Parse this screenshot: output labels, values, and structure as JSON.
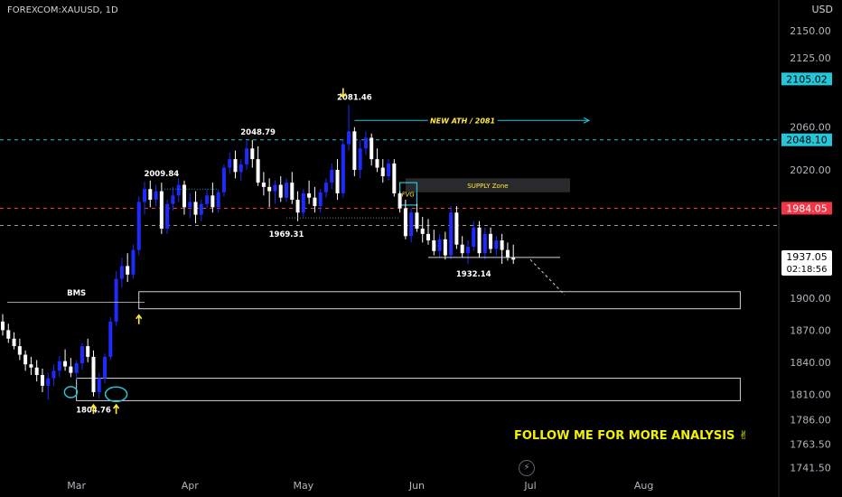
{
  "header": {
    "symbol": "FOREXCOM:XAUUSD, 1D",
    "currency": "USD"
  },
  "colors": {
    "bull": "#1e2bff",
    "bear": "#ffffff",
    "teal": "#26c6da",
    "red": "#f23645",
    "yellow": "#ffeb3b",
    "follow": "#f2f200"
  },
  "chart_data": {
    "type": "candlestick",
    "title": "FOREXCOM:XAUUSD, 1D",
    "ylim": [
      1735,
      2162
    ],
    "y_ticks": [
      "2150.00",
      "2125.00",
      "2060.00",
      "2020.00",
      "1900.00",
      "1870.00",
      "1840.00",
      "1810.00",
      "1786.00",
      "1763.50",
      "1741.50"
    ],
    "y_tick_values": [
      2150,
      2125,
      2060,
      2020,
      1900,
      1870,
      1840,
      1810,
      1786,
      1763.5,
      1741.5
    ],
    "x_ticks": [
      "Mar",
      "Apr",
      "May",
      "Jun",
      "Jul",
      "Aug"
    ],
    "x_tick_index": [
      13,
      33,
      53,
      73,
      93,
      113
    ],
    "candles": [
      {
        "o": 1878,
        "h": 1885,
        "l": 1865,
        "c": 1870
      },
      {
        "o": 1870,
        "h": 1876,
        "l": 1858,
        "c": 1862
      },
      {
        "o": 1862,
        "h": 1868,
        "l": 1852,
        "c": 1855
      },
      {
        "o": 1855,
        "h": 1862,
        "l": 1842,
        "c": 1847
      },
      {
        "o": 1847,
        "h": 1851,
        "l": 1832,
        "c": 1838
      },
      {
        "o": 1838,
        "h": 1845,
        "l": 1828,
        "c": 1835
      },
      {
        "o": 1835,
        "h": 1842,
        "l": 1822,
        "c": 1828
      },
      {
        "o": 1828,
        "h": 1834,
        "l": 1812,
        "c": 1818
      },
      {
        "o": 1818,
        "h": 1830,
        "l": 1805,
        "c": 1825
      },
      {
        "o": 1825,
        "h": 1838,
        "l": 1818,
        "c": 1832
      },
      {
        "o": 1832,
        "h": 1846,
        "l": 1826,
        "c": 1841
      },
      {
        "o": 1841,
        "h": 1852,
        "l": 1832,
        "c": 1836
      },
      {
        "o": 1836,
        "h": 1844,
        "l": 1826,
        "c": 1830
      },
      {
        "o": 1830,
        "h": 1842,
        "l": 1824,
        "c": 1839
      },
      {
        "o": 1839,
        "h": 1858,
        "l": 1833,
        "c": 1855
      },
      {
        "o": 1855,
        "h": 1862,
        "l": 1840,
        "c": 1845
      },
      {
        "o": 1845,
        "h": 1851,
        "l": 1808,
        "c": 1812
      },
      {
        "o": 1812,
        "h": 1830,
        "l": 1806,
        "c": 1825
      },
      {
        "o": 1825,
        "h": 1848,
        "l": 1820,
        "c": 1845
      },
      {
        "o": 1845,
        "h": 1882,
        "l": 1842,
        "c": 1878
      },
      {
        "o": 1878,
        "h": 1925,
        "l": 1874,
        "c": 1918
      },
      {
        "o": 1918,
        "h": 1938,
        "l": 1910,
        "c": 1930
      },
      {
        "o": 1930,
        "h": 1942,
        "l": 1915,
        "c": 1922
      },
      {
        "o": 1922,
        "h": 1950,
        "l": 1918,
        "c": 1945
      },
      {
        "o": 1945,
        "h": 1995,
        "l": 1940,
        "c": 1990
      },
      {
        "o": 1990,
        "h": 2009,
        "l": 1978,
        "c": 2002
      },
      {
        "o": 2002,
        "h": 2010,
        "l": 1985,
        "c": 1992
      },
      {
        "o": 1992,
        "h": 2006,
        "l": 1986,
        "c": 2000
      },
      {
        "o": 2000,
        "h": 2008,
        "l": 1960,
        "c": 1965
      },
      {
        "o": 1965,
        "h": 1992,
        "l": 1960,
        "c": 1988
      },
      {
        "o": 1988,
        "h": 2004,
        "l": 1982,
        "c": 1996
      },
      {
        "o": 1996,
        "h": 2012,
        "l": 1990,
        "c": 2006
      },
      {
        "o": 2006,
        "h": 2010,
        "l": 1978,
        "c": 1985
      },
      {
        "o": 1985,
        "h": 1998,
        "l": 1975,
        "c": 1990
      },
      {
        "o": 1990,
        "h": 2000,
        "l": 1970,
        "c": 1978
      },
      {
        "o": 1978,
        "h": 1992,
        "l": 1972,
        "c": 1988
      },
      {
        "o": 1988,
        "h": 2002,
        "l": 1984,
        "c": 1996
      },
      {
        "o": 1996,
        "h": 2008,
        "l": 1980,
        "c": 1985
      },
      {
        "o": 1985,
        "h": 2002,
        "l": 1980,
        "c": 1999
      },
      {
        "o": 1999,
        "h": 2025,
        "l": 1995,
        "c": 2022
      },
      {
        "o": 2022,
        "h": 2036,
        "l": 2016,
        "c": 2030
      },
      {
        "o": 2030,
        "h": 2038,
        "l": 2012,
        "c": 2018
      },
      {
        "o": 2018,
        "h": 2030,
        "l": 2010,
        "c": 2025
      },
      {
        "o": 2025,
        "h": 2048,
        "l": 2020,
        "c": 2040
      },
      {
        "o": 2040,
        "h": 2048,
        "l": 2022,
        "c": 2030
      },
      {
        "o": 2030,
        "h": 2042,
        "l": 2005,
        "c": 2008
      },
      {
        "o": 2008,
        "h": 2018,
        "l": 1996,
        "c": 2004
      },
      {
        "o": 2004,
        "h": 2012,
        "l": 1985,
        "c": 2000
      },
      {
        "o": 2000,
        "h": 2010,
        "l": 1988,
        "c": 2006
      },
      {
        "o": 2006,
        "h": 2014,
        "l": 1990,
        "c": 1994
      },
      {
        "o": 1994,
        "h": 2012,
        "l": 1990,
        "c": 2008
      },
      {
        "o": 2008,
        "h": 2018,
        "l": 1988,
        "c": 1992
      },
      {
        "o": 1992,
        "h": 2000,
        "l": 1972,
        "c": 1980
      },
      {
        "o": 1980,
        "h": 2002,
        "l": 1975,
        "c": 1998
      },
      {
        "o": 1998,
        "h": 2010,
        "l": 1988,
        "c": 1994
      },
      {
        "o": 1994,
        "h": 2004,
        "l": 1980,
        "c": 1986
      },
      {
        "o": 1986,
        "h": 2002,
        "l": 1980,
        "c": 1999
      },
      {
        "o": 1999,
        "h": 2012,
        "l": 1994,
        "c": 2008
      },
      {
        "o": 2008,
        "h": 2026,
        "l": 2002,
        "c": 2020
      },
      {
        "o": 2020,
        "h": 2030,
        "l": 1992,
        "c": 1998
      },
      {
        "o": 1998,
        "h": 2048,
        "l": 1994,
        "c": 2044
      },
      {
        "o": 2044,
        "h": 2081,
        "l": 2038,
        "c": 2056
      },
      {
        "o": 2056,
        "h": 2060,
        "l": 2014,
        "c": 2020
      },
      {
        "o": 2020,
        "h": 2048,
        "l": 2012,
        "c": 2040
      },
      {
        "o": 2040,
        "h": 2056,
        "l": 2034,
        "c": 2050
      },
      {
        "o": 2050,
        "h": 2054,
        "l": 2024,
        "c": 2030
      },
      {
        "o": 2030,
        "h": 2040,
        "l": 2018,
        "c": 2022
      },
      {
        "o": 2022,
        "h": 2030,
        "l": 2008,
        "c": 2014
      },
      {
        "o": 2014,
        "h": 2030,
        "l": 2010,
        "c": 2026
      },
      {
        "o": 2026,
        "h": 2030,
        "l": 1995,
        "c": 1998
      },
      {
        "o": 1998,
        "h": 2000,
        "l": 1980,
        "c": 1984
      },
      {
        "o": 1984,
        "h": 1992,
        "l": 1955,
        "c": 1958
      },
      {
        "o": 1958,
        "h": 1984,
        "l": 1952,
        "c": 1980
      },
      {
        "o": 1980,
        "h": 1988,
        "l": 1962,
        "c": 1965
      },
      {
        "o": 1965,
        "h": 1976,
        "l": 1952,
        "c": 1960
      },
      {
        "o": 1960,
        "h": 1974,
        "l": 1950,
        "c": 1954
      },
      {
        "o": 1954,
        "h": 1964,
        "l": 1940,
        "c": 1944
      },
      {
        "o": 1944,
        "h": 1960,
        "l": 1938,
        "c": 1955
      },
      {
        "o": 1955,
        "h": 1962,
        "l": 1936,
        "c": 1940
      },
      {
        "o": 1940,
        "h": 1986,
        "l": 1936,
        "c": 1980
      },
      {
        "o": 1980,
        "h": 1986,
        "l": 1946,
        "c": 1950
      },
      {
        "o": 1950,
        "h": 1958,
        "l": 1938,
        "c": 1942
      },
      {
        "o": 1942,
        "h": 1954,
        "l": 1932,
        "c": 1948
      },
      {
        "o": 1948,
        "h": 1972,
        "l": 1944,
        "c": 1966
      },
      {
        "o": 1966,
        "h": 1972,
        "l": 1938,
        "c": 1942
      },
      {
        "o": 1942,
        "h": 1966,
        "l": 1936,
        "c": 1960
      },
      {
        "o": 1960,
        "h": 1966,
        "l": 1942,
        "c": 1946
      },
      {
        "o": 1946,
        "h": 1958,
        "l": 1940,
        "c": 1954
      },
      {
        "o": 1954,
        "h": 1960,
        "l": 1932,
        "c": 1945
      },
      {
        "o": 1945,
        "h": 1952,
        "l": 1935,
        "c": 1938
      },
      {
        "o": 1938,
        "h": 1950,
        "l": 1932,
        "c": 1936
      }
    ],
    "levels": [
      {
        "name": "ath-line",
        "value": 2048.1,
        "color": "#26c6da"
      },
      {
        "name": "red-line",
        "value": 1984.05,
        "color": "#f23645"
      },
      {
        "name": "price-line",
        "value": 1968,
        "color": "#9598a1"
      }
    ],
    "zones": [
      {
        "name": "supply-zone",
        "label": "SUPPLY Zone",
        "i0": 71,
        "i1": 100,
        "top": 2012,
        "bottom": 1999
      },
      {
        "name": "upper-demand-zone",
        "label": "",
        "i0": 24,
        "i1": 130,
        "top": 1906,
        "bottom": 1890
      },
      {
        "name": "lower-demand-zone",
        "label": "",
        "i0": 13,
        "i1": 130,
        "top": 1825,
        "bottom": 1804
      },
      {
        "name": "fvg-box",
        "label": "FVG",
        "i0": 70,
        "i1": 73,
        "top": 2008,
        "bottom": 1987
      }
    ],
    "annotations": [
      {
        "name": "label-2081",
        "text": "2081.46",
        "i": 62,
        "value": 2081.46,
        "pos": "above"
      },
      {
        "name": "label-2048",
        "text": "2048.79",
        "i": 45,
        "value": 2048.79,
        "pos": "above"
      },
      {
        "name": "label-2009",
        "text": "2009.84",
        "i": 28,
        "value": 2009.84,
        "pos": "above"
      },
      {
        "name": "label-1969",
        "text": "1969.31",
        "i": 50,
        "value": 1969.31,
        "pos": "below"
      },
      {
        "name": "label-1932",
        "text": "1932.14",
        "i": 83,
        "value": 1932.14,
        "pos": "below"
      },
      {
        "name": "label-1804",
        "text": "1804.76",
        "i": 16,
        "value": 1804.76,
        "pos": "below"
      },
      {
        "name": "label-bms",
        "text": "BMS",
        "i": 13,
        "value": 1898,
        "pos": "above"
      }
    ],
    "new_ath_label": "NEW ATH / 2081",
    "price_tags": [
      {
        "name": "tag-2105",
        "text": "2105.02",
        "value": 2105.02,
        "bg": "#26c6da",
        "fg": "#000000"
      },
      {
        "name": "tag-2048",
        "text": "2048.10",
        "value": 2048.1,
        "bg": "#26c6da",
        "fg": "#000000"
      },
      {
        "name": "tag-1984",
        "text": "1984.05",
        "value": 1984.05,
        "bg": "#f23645",
        "fg": "#ffffff"
      }
    ],
    "current_price": "1937.05",
    "countdown": "02:18:56"
  },
  "footer": {
    "follow_text": "FOLLOW ME FOR MORE ANALYSIS ✌"
  }
}
